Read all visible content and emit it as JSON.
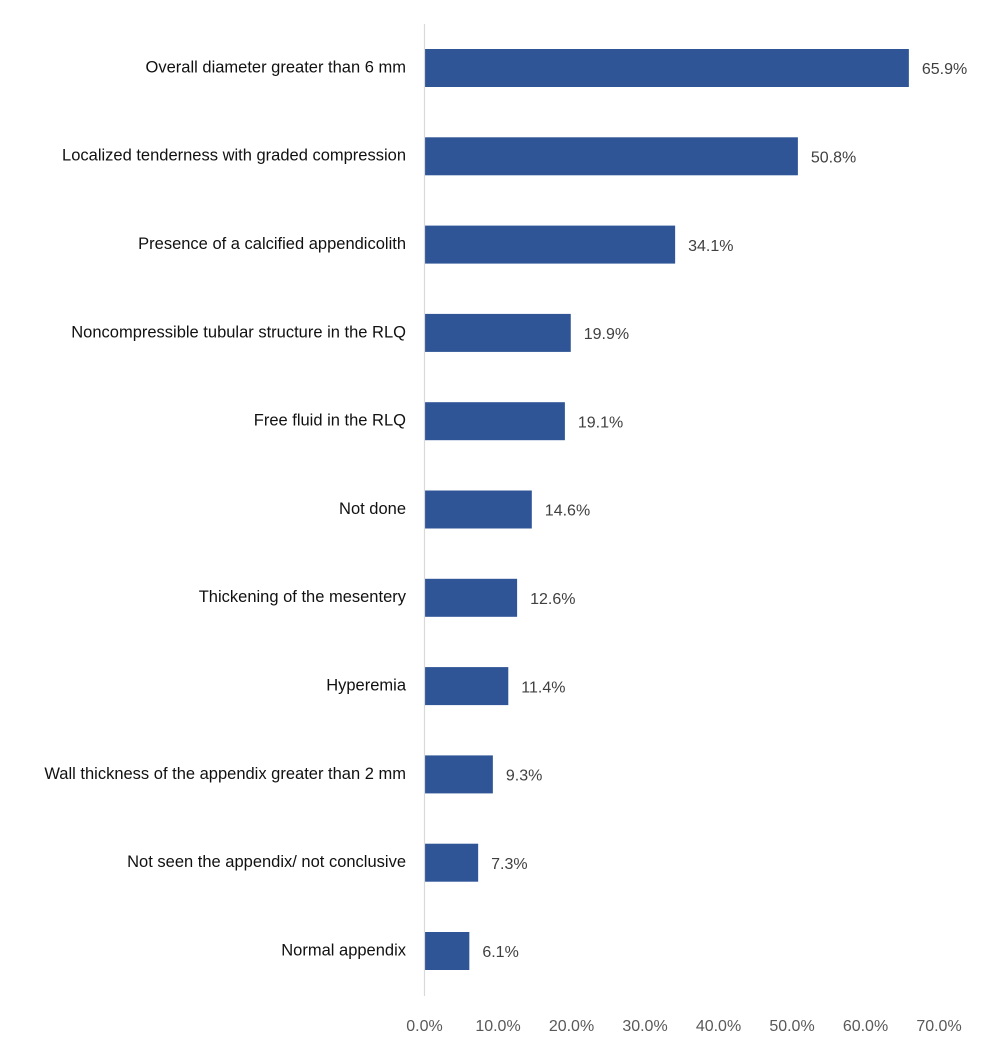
{
  "chart_data": {
    "type": "bar",
    "orientation": "horizontal",
    "title": "",
    "xlabel": "",
    "ylabel": "",
    "xlim": [
      0,
      70
    ],
    "grid": false,
    "legend": "none",
    "bar_color": "#2F5597",
    "categories": [
      "Overall diameter greater than 6 mm",
      "Localized tenderness with graded compression",
      "Presence of a calcified appendicolith",
      "Noncompressible tubular structure in the RLQ",
      "Free fluid in the RLQ",
      "Not done",
      "Thickening of the mesentery",
      "Hyperemia",
      "Wall thickness of the appendix greater than 2 mm",
      "Not seen the appendix/ not conclusive",
      "Normal appendix"
    ],
    "values": [
      65.9,
      50.8,
      34.1,
      19.9,
      19.1,
      14.6,
      12.6,
      11.4,
      9.3,
      7.3,
      6.1
    ],
    "value_labels": [
      "65.9%",
      "50.8%",
      "34.1%",
      "19.9%",
      "19.1%",
      "14.6%",
      "12.6%",
      "11.4%",
      "9.3%",
      "7.3%",
      "6.1%"
    ],
    "x_ticks": [
      0,
      10,
      20,
      30,
      40,
      50,
      60,
      70
    ],
    "x_tick_labels": [
      "0.0%",
      "10.0%",
      "20.0%",
      "30.0%",
      "40.0%",
      "50.0%",
      "60.0%",
      "70.0%"
    ]
  }
}
